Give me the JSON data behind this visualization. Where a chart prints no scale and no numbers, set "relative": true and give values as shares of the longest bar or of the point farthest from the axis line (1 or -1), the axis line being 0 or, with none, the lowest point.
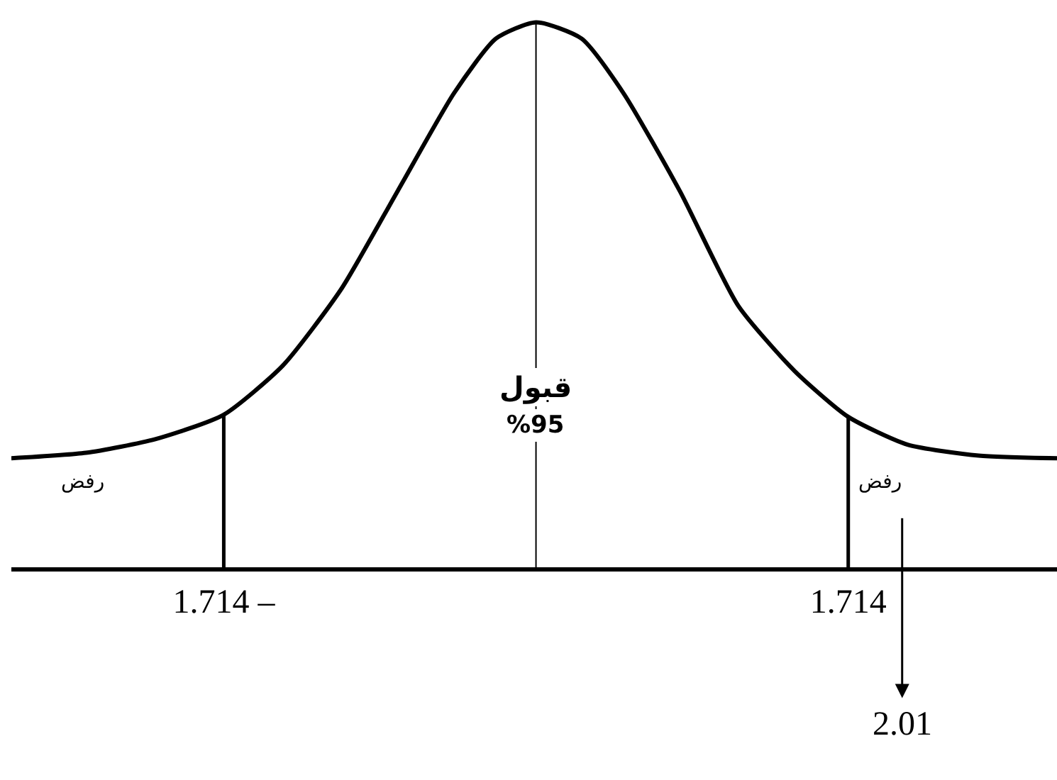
{
  "chart_data": {
    "type": "line",
    "relative": true,
    "color": "#000000",
    "marker": "none",
    "grid": false,
    "legend": false,
    "tick_labels": "x",
    "xlim": [
      -2.88,
      2.86
    ],
    "xticks": [
      {
        "value": -1.714,
        "label": "1.714 –"
      },
      {
        "value": 1.714,
        "label": "1.714"
      }
    ],
    "x": [
      -2.88,
      -2.47,
      -2.09,
      -1.714,
      -1.39,
      -1.07,
      -0.76,
      -0.45,
      -0.22,
      0,
      0.25,
      0.48,
      0.79,
      1.11,
      1.42,
      1.714,
      2.04,
      2.43,
      2.86
    ],
    "values": [
      0.2,
      0.21,
      0.235,
      0.28,
      0.37,
      0.51,
      0.69,
      0.87,
      0.97,
      1,
      0.97,
      0.87,
      0.69,
      0.48,
      0.36,
      0.276,
      0.225,
      0.205,
      0.2
    ],
    "ref_lines": [
      {
        "axis": "x",
        "value": -1.714
      },
      {
        "axis": "x",
        "value": 0
      },
      {
        "axis": "x",
        "value": 1.714
      },
      {
        "axis": "x",
        "value": 2.01,
        "label": "2.01"
      }
    ],
    "annotations": [
      {
        "text": "قبول",
        "x": 0,
        "y": 0.33
      },
      {
        "text": "%95",
        "x": 0,
        "y": 0.26
      },
      "رفض",
      "رفض"
    ]
  }
}
